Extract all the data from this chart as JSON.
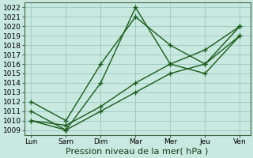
{
  "x_labels": [
    "Lun",
    "Sam",
    "Dim",
    "Mar",
    "Mer",
    "Jeu",
    "Ven"
  ],
  "x_positions": [
    0,
    1,
    2,
    3,
    4,
    5,
    6
  ],
  "line1": [
    1012,
    1010,
    1016,
    1021,
    1018,
    1016,
    1020
  ],
  "line2": [
    1011,
    1009,
    1014,
    1022,
    1016,
    1015,
    1019
  ],
  "line3": [
    1010,
    1009,
    1011,
    1013,
    1015,
    1016,
    1019
  ],
  "line4": [
    1010,
    1009.5,
    1011.5,
    1014,
    1016,
    1017.5,
    1020
  ],
  "ylim_min": 1008.5,
  "ylim_max": 1022.5,
  "yticks": [
    1009,
    1010,
    1011,
    1012,
    1013,
    1014,
    1015,
    1016,
    1017,
    1018,
    1019,
    1020,
    1021,
    1022
  ],
  "line_color": "#1a5c1a",
  "bg_color": "#c8e8e0",
  "grid_color": "#98c8c0",
  "xlabel": "Pression niveau de la mer( hPa )",
  "xlabel_fontsize": 8,
  "tick_fontsize": 6.5,
  "marker_size": 4,
  "linewidth": 1.0
}
